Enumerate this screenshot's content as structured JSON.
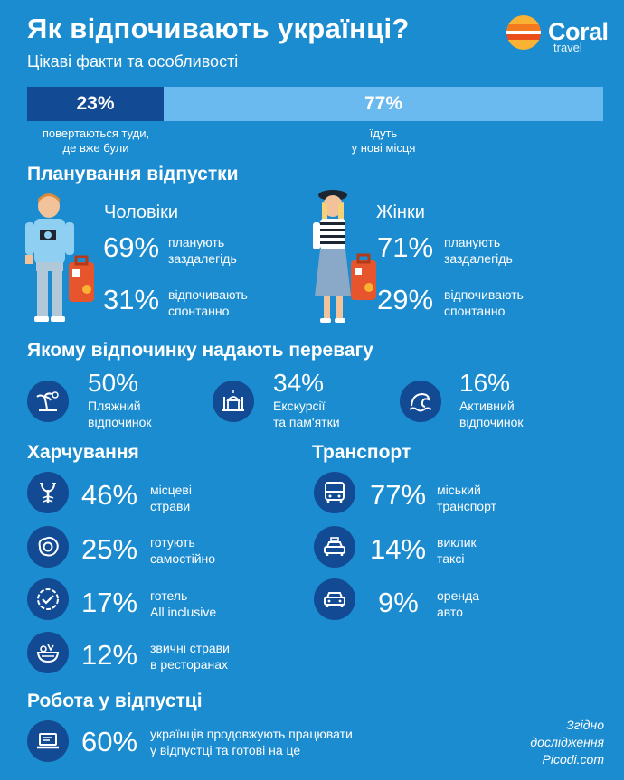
{
  "header": {
    "title": "Як відпочивають українці?",
    "subtitle": "Цікаві факти та особливості",
    "logo_name": "Coral",
    "logo_sub": "travel"
  },
  "ratio": {
    "left_value": "23%",
    "left_caption_1": "повертаються туди,",
    "left_caption_2": "де вже були",
    "right_value": "77%",
    "right_caption_1": "їдуть",
    "right_caption_2": "у нові місця"
  },
  "planning": {
    "heading": "Планування відпустки",
    "men": {
      "label": "Чоловіки",
      "plan_pct": "69%",
      "plan_1": "планують",
      "plan_2": "заздалегідь",
      "spont_pct": "31%",
      "spont_1": "відпочивають",
      "spont_2": "спонтанно"
    },
    "women": {
      "label": "Жінки",
      "plan_pct": "71%",
      "plan_1": "планують",
      "plan_2": "заздалегідь",
      "spont_pct": "29%",
      "spont_1": "відпочивають",
      "spont_2": "спонтанно"
    }
  },
  "preference": {
    "heading": "Якому відпочинку надають перевагу",
    "items": [
      {
        "pct": "50%",
        "line1": "Пляжний",
        "line2": "відпочинок",
        "icon": "beach-icon"
      },
      {
        "pct": "34%",
        "line1": "Екскурсії",
        "line2": "та пам'ятки",
        "icon": "mosque-icon"
      },
      {
        "pct": "16%",
        "line1": "Активний",
        "line2": "відпочинок",
        "icon": "wave-icon"
      }
    ]
  },
  "food": {
    "heading": "Харчування",
    "items": [
      {
        "pct": "46%",
        "line1": "місцеві",
        "line2": "страви",
        "icon": "lobster-icon"
      },
      {
        "pct": "25%",
        "line1": "готують",
        "line2": "самостійно",
        "icon": "fried-egg-icon"
      },
      {
        "pct": "17%",
        "line1": "готель",
        "line2": "All inclusive",
        "icon": "checkmark-icon"
      },
      {
        "pct": "12%",
        "line1": "звичні страви",
        "line2": "в ресторанах",
        "icon": "salad-bowl-icon"
      }
    ]
  },
  "transport": {
    "heading": "Транспорт",
    "items": [
      {
        "pct": "77%",
        "line1": "міський",
        "line2": "транспорт",
        "icon": "bus-icon"
      },
      {
        "pct": "14%",
        "line1": "виклик",
        "line2": "таксі",
        "icon": "taxi-icon"
      },
      {
        "pct": "9%",
        "line1": "оренда",
        "line2": "авто",
        "icon": "car-icon"
      }
    ]
  },
  "work": {
    "heading": "Робота у відпустці",
    "pct": "60%",
    "line1": "українців продовжують працювати",
    "line2": "у відпустці та готові на це",
    "icon": "laptop-icon"
  },
  "source": {
    "line1": "Згідно",
    "line2": "дослідження",
    "line3": "Picodi.com"
  },
  "colors": {
    "background": "#1b8ccf",
    "dark_blue": "#134a94",
    "light_blue": "#6ab9ef"
  }
}
